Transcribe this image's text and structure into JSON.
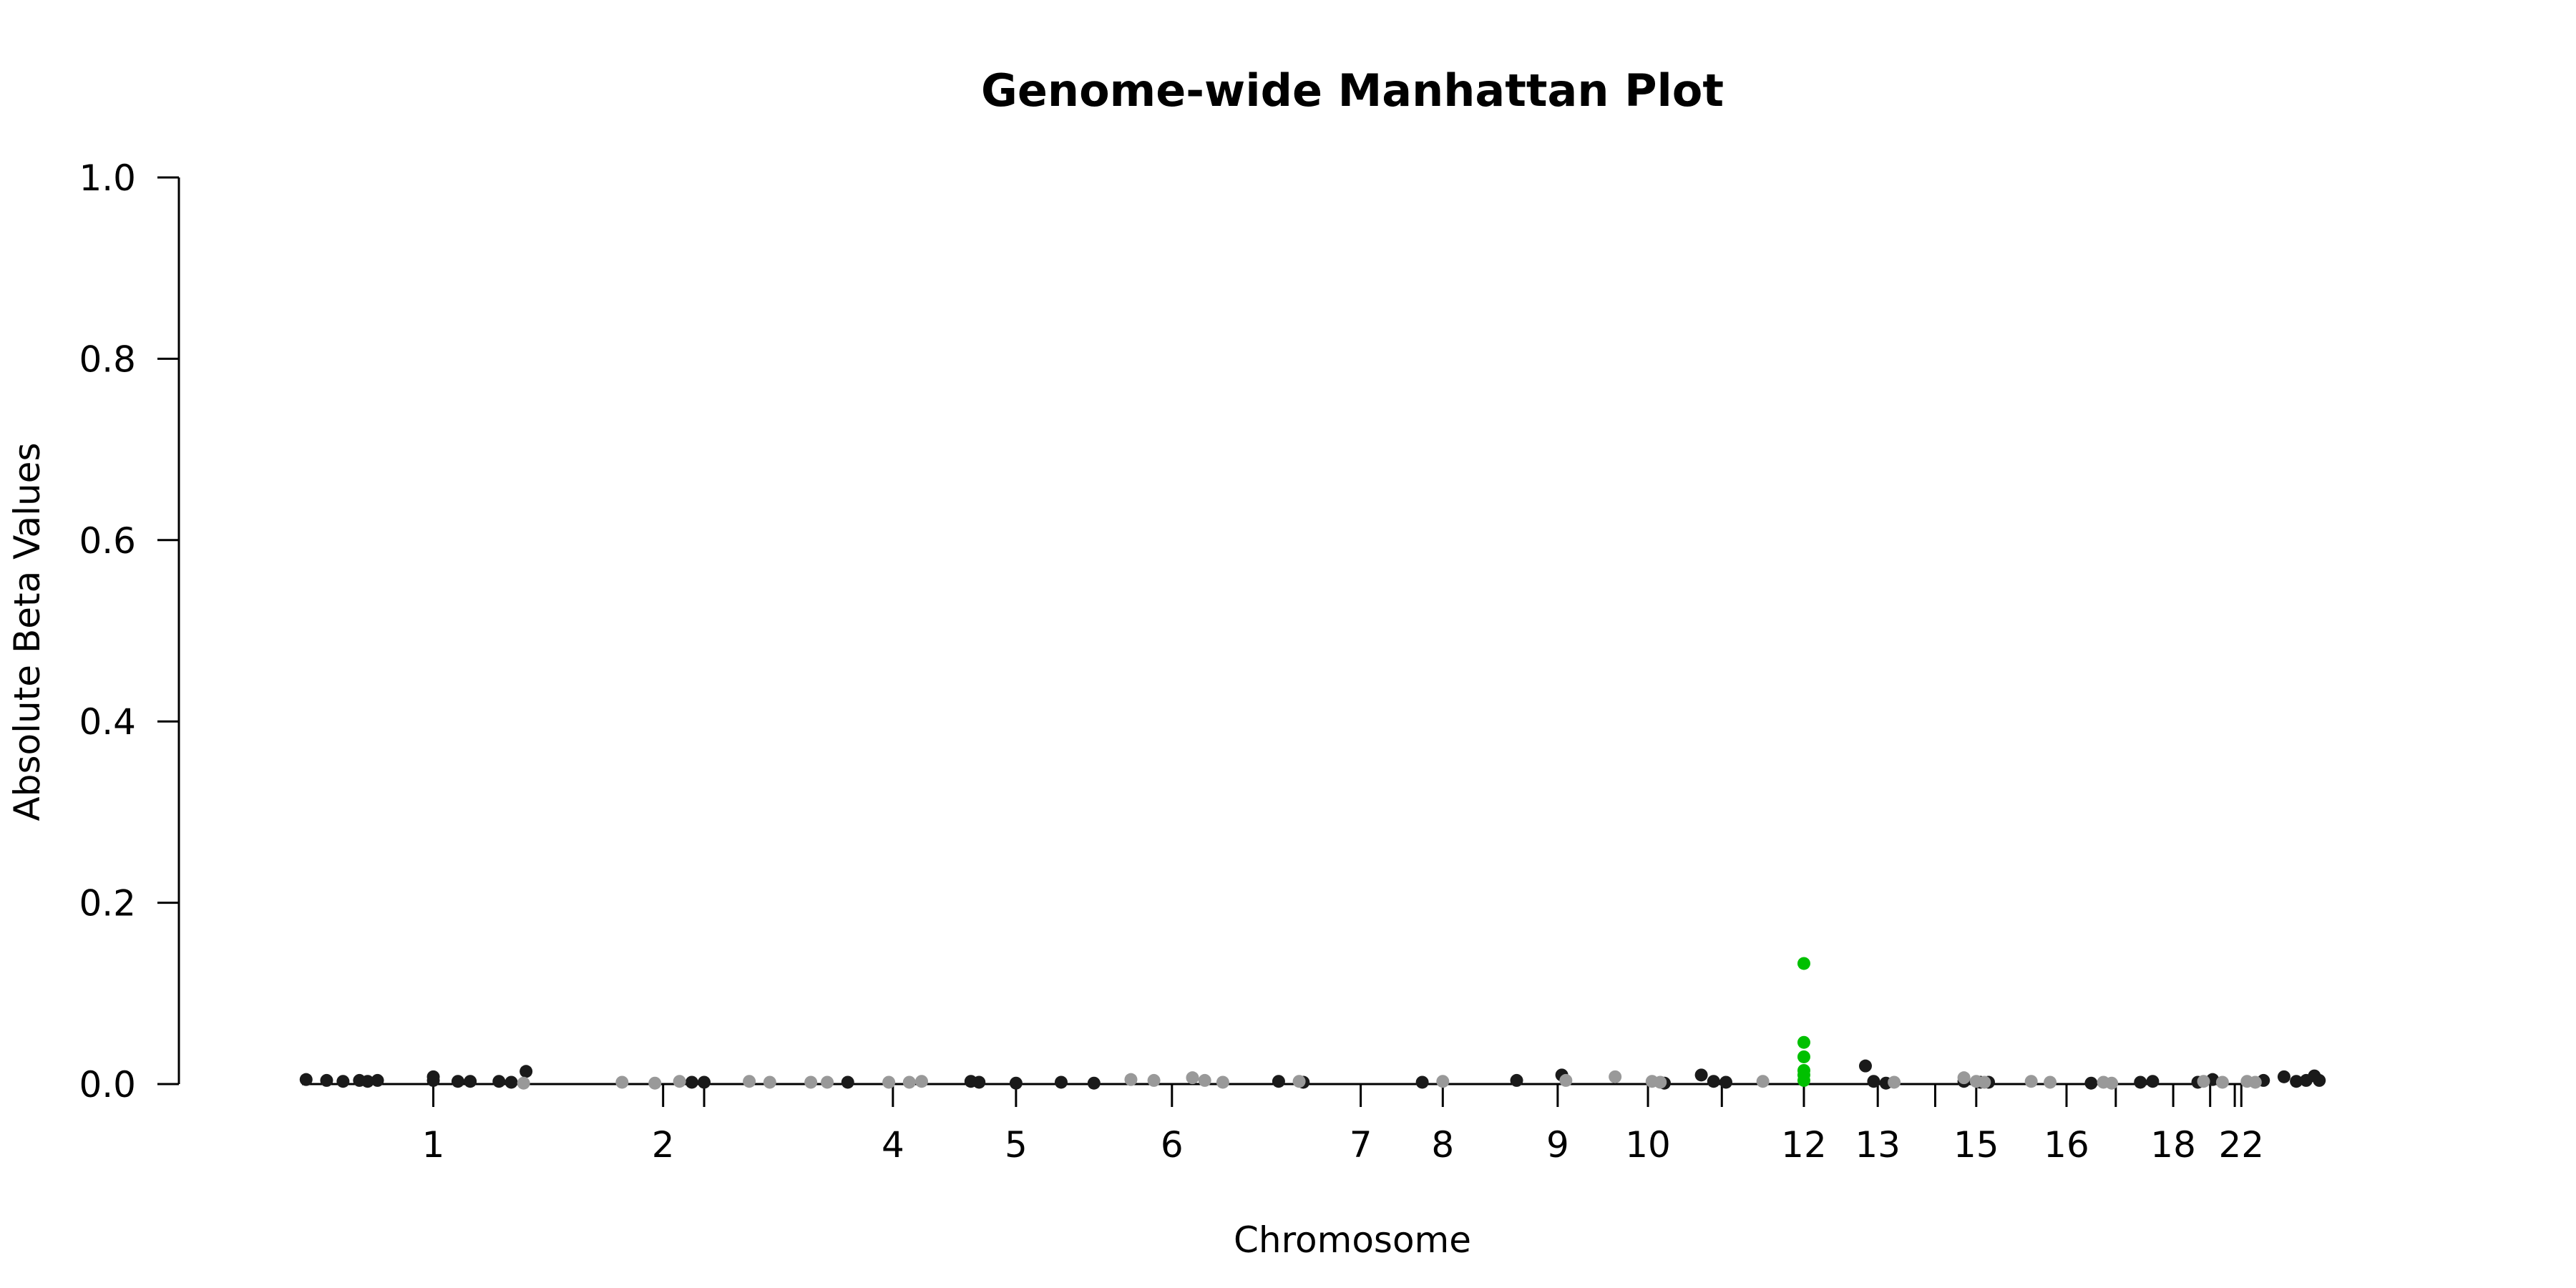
{
  "chart_data": {
    "type": "scatter",
    "title": "Genome-wide Manhattan Plot",
    "xlabel": "Chromosome",
    "ylabel": "Absolute Beta Values",
    "ylim": [
      0,
      1
    ],
    "yticks": [
      "0.0",
      "0.2",
      "0.4",
      "0.6",
      "0.8",
      "1.0"
    ],
    "xlim": [
      -3.1,
      24.8
    ],
    "x_ticks": [
      {
        "x": 0.0,
        "label": "1"
      },
      {
        "x": 2.8,
        "label": "2"
      },
      {
        "x": 3.3,
        "label": ""
      },
      {
        "x": 5.6,
        "label": "4"
      },
      {
        "x": 7.1,
        "label": "5"
      },
      {
        "x": 9.0,
        "label": "6"
      },
      {
        "x": 11.3,
        "label": "7"
      },
      {
        "x": 12.3,
        "label": "8"
      },
      {
        "x": 13.7,
        "label": "9"
      },
      {
        "x": 14.8,
        "label": "10"
      },
      {
        "x": 15.7,
        "label": ""
      },
      {
        "x": 16.7,
        "label": "12"
      },
      {
        "x": 17.6,
        "label": "13"
      },
      {
        "x": 18.3,
        "label": ""
      },
      {
        "x": 18.8,
        "label": "15"
      },
      {
        "x": 19.9,
        "label": "16"
      },
      {
        "x": 20.5,
        "label": ""
      },
      {
        "x": 21.2,
        "label": "18"
      },
      {
        "x": 21.65,
        "label": ""
      },
      {
        "x": 21.95,
        "label": ""
      },
      {
        "x": 22.03,
        "label": "22"
      }
    ],
    "series": [
      {
        "color": "#1a1a1a",
        "points": [
          [
            -1.55,
            0.005
          ],
          [
            -1.3,
            0.004
          ],
          [
            -1.1,
            0.003
          ],
          [
            -0.9,
            0.004
          ],
          [
            -0.8,
            0.003
          ],
          [
            -0.68,
            0.004
          ],
          [
            0.0,
            0.008
          ],
          [
            0.0,
            0.004
          ],
          [
            0.3,
            0.003
          ],
          [
            0.45,
            0.003
          ],
          [
            0.8,
            0.003
          ],
          [
            0.95,
            0.002
          ],
          [
            1.13,
            0.014
          ],
          [
            3.15,
            0.002
          ],
          [
            3.3,
            0.002
          ],
          [
            5.05,
            0.002
          ],
          [
            6.55,
            0.003
          ],
          [
            6.65,
            0.002
          ],
          [
            7.1,
            0.001
          ],
          [
            7.65,
            0.002
          ],
          [
            8.05,
            0.001
          ],
          [
            10.3,
            0.003
          ],
          [
            10.6,
            0.002
          ],
          [
            12.05,
            0.002
          ],
          [
            13.2,
            0.004
          ],
          [
            13.75,
            0.01
          ],
          [
            15.0,
            0.001
          ],
          [
            15.45,
            0.01
          ],
          [
            15.6,
            0.003
          ],
          [
            15.75,
            0.002
          ],
          [
            17.45,
            0.02
          ],
          [
            17.55,
            0.003
          ],
          [
            17.7,
            0.001
          ],
          [
            18.65,
            0.003
          ],
          [
            18.85,
            0.002
          ],
          [
            18.95,
            0.002
          ],
          [
            20.2,
            0.001
          ],
          [
            20.8,
            0.002
          ],
          [
            20.95,
            0.003
          ],
          [
            21.5,
            0.002
          ],
          [
            21.68,
            0.005
          ],
          [
            22.3,
            0.004
          ],
          [
            22.55,
            0.008
          ],
          [
            22.7,
            0.003
          ],
          [
            22.82,
            0.004
          ],
          [
            22.92,
            0.009
          ],
          [
            22.98,
            0.004
          ]
        ]
      },
      {
        "color": "#999999",
        "points": [
          [
            1.1,
            0.001
          ],
          [
            2.3,
            0.002
          ],
          [
            2.7,
            0.001
          ],
          [
            3.0,
            0.003
          ],
          [
            3.85,
            0.003
          ],
          [
            4.1,
            0.002
          ],
          [
            4.6,
            0.002
          ],
          [
            4.8,
            0.002
          ],
          [
            5.55,
            0.002
          ],
          [
            5.8,
            0.002
          ],
          [
            5.95,
            0.003
          ],
          [
            8.5,
            0.005
          ],
          [
            8.78,
            0.004
          ],
          [
            9.25,
            0.007
          ],
          [
            9.4,
            0.004
          ],
          [
            9.62,
            0.002
          ],
          [
            10.55,
            0.003
          ],
          [
            12.3,
            0.003
          ],
          [
            13.8,
            0.004
          ],
          [
            14.4,
            0.008
          ],
          [
            14.85,
            0.003
          ],
          [
            14.95,
            0.002
          ],
          [
            16.2,
            0.003
          ],
          [
            17.8,
            0.002
          ],
          [
            18.65,
            0.007
          ],
          [
            18.8,
            0.003
          ],
          [
            18.9,
            0.002
          ],
          [
            19.47,
            0.003
          ],
          [
            19.7,
            0.002
          ],
          [
            20.35,
            0.002
          ],
          [
            20.45,
            0.001
          ],
          [
            21.57,
            0.003
          ],
          [
            21.8,
            0.002
          ],
          [
            22.1,
            0.003
          ],
          [
            22.2,
            0.002
          ]
        ]
      },
      {
        "color": "#00c000",
        "points": [
          [
            16.7,
            0.133
          ],
          [
            16.7,
            0.046
          ],
          [
            16.7,
            0.03
          ],
          [
            16.7,
            0.015
          ],
          [
            16.7,
            0.01
          ],
          [
            16.7,
            0.004
          ]
        ]
      }
    ]
  }
}
